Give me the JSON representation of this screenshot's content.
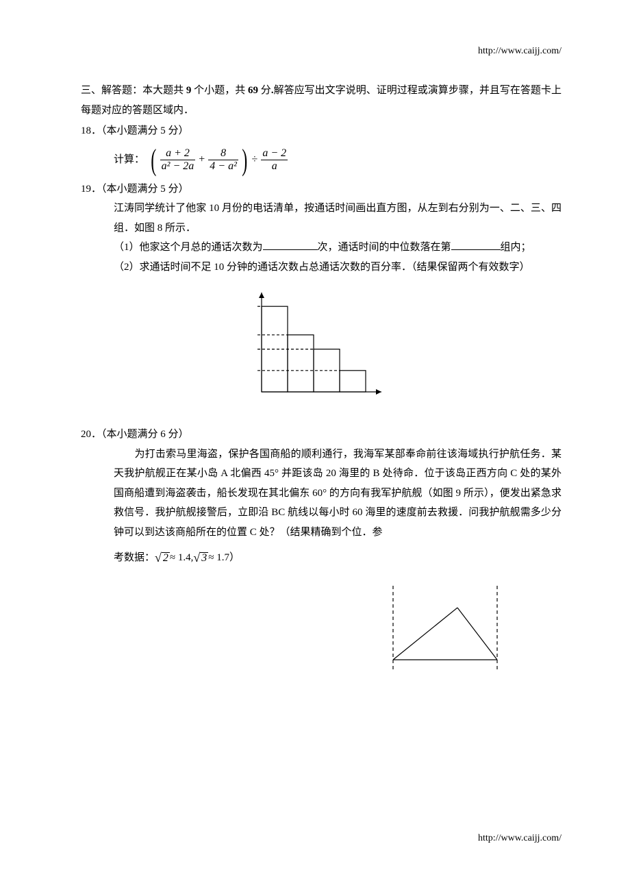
{
  "url": "http://www.caijj.com/",
  "section": {
    "prefix": "三、解答题：本大题共 ",
    "count": "9",
    "mid1": " 个小题，共 ",
    "points": "69",
    "mid2": " 分",
    "bold_dot": ".",
    "tail": "解答应写出文字说明、证明过程或演算步骤，并且写在答题卡上每题对应的答题区域内．"
  },
  "q18": {
    "head_no": "18．",
    "head": "（本小题满分 5 分）",
    "label": "计算：",
    "frac1": {
      "num": "a + 2",
      "den": "a² − 2a"
    },
    "plus": "+",
    "frac2": {
      "num": "8",
      "den": "4 − a²"
    },
    "div": "÷",
    "frac3": {
      "num": "a − 2",
      "den": "a"
    }
  },
  "q19": {
    "head_no": "19．",
    "head": "（本小题满分 5 分）",
    "p1": "江涛同学统计了他家 10 月份的电话清单，按通话时间画出直方图，从左到右分别为一、二、三、四组．如图 8 所示．",
    "p2a": "（1）他家这个月总的通话次数为",
    "p2b": "次，通话时间的中位数落在第",
    "p2c": "组内；",
    "p3": "（2）求通话时间不足 10 分钟的通话次数占总通话次数的百分率．（结果保留两个有效数字）",
    "chart": {
      "bars": [
        120,
        80,
        60,
        30
      ],
      "max": 125,
      "stroke": "#000000",
      "dash": "4,3"
    }
  },
  "q20": {
    "head_no": "20．",
    "head": "（本小题满分 6 分）",
    "p_indent": "　　",
    "p": "为打击索马里海盗，保护各国商船的顺利通行，我海军某部奉命前往该海域执行护航任务．某天我护航舰正在某小岛 A 北偏西 45° 并距该岛 20 海里的 B 处待命．位于该岛正西方向 C 处的某外国商船遭到海盗袭击，船长发现在其北偏东 60° 的方向有我军护航舰（如图 9 所示），便发出紧急求救信号．我护航舰接警后，立即沿 BC 航线以每小时 60 海里的速度前去救援．问我护航舰需多少分钟可以到达该商船所在的位置 C 处？（结果精确到个位．参",
    "p2a": "考数据：",
    "sqrt2_lhs": "2",
    "approx1": " ≈ 1.4, ",
    "sqrt3_lhs": "3",
    "approx2": " ≈ 1.7）",
    "fig": {
      "stroke": "#000000",
      "dash": "5,4"
    }
  }
}
